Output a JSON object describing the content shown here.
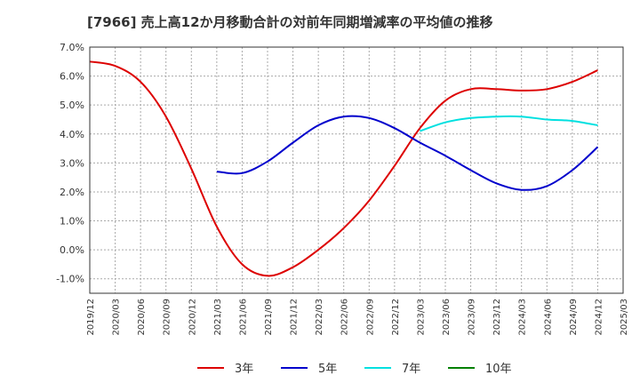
{
  "chart_data": {
    "type": "line",
    "title": "[7966]  売上高12か月移動合計の対前年同期増減率の平均値の推移",
    "xlabel": "",
    "ylabel": "",
    "ylim": [
      -1.5,
      7.0
    ],
    "y_ticks": [
      -1.0,
      0.0,
      1.0,
      2.0,
      3.0,
      4.0,
      5.0,
      6.0,
      7.0
    ],
    "y_tick_labels": [
      "-1.0%",
      "0.0%",
      "1.0%",
      "2.0%",
      "3.0%",
      "4.0%",
      "5.0%",
      "6.0%",
      "7.0%"
    ],
    "x_ticks": [
      "2019/12",
      "2020/03",
      "2020/06",
      "2020/09",
      "2020/12",
      "2021/03",
      "2021/06",
      "2021/09",
      "2021/12",
      "2022/03",
      "2022/06",
      "2022/09",
      "2022/12",
      "2023/03",
      "2023/06",
      "2023/09",
      "2023/12",
      "2024/03",
      "2024/06",
      "2024/09",
      "2024/12",
      "2025/03"
    ],
    "grid": true,
    "legend_position": "bottom",
    "series": [
      {
        "name": "3年",
        "color": "#dd0000",
        "x": [
          "2019/12",
          "2020/03",
          "2020/06",
          "2020/09",
          "2020/12",
          "2021/03",
          "2021/06",
          "2021/09",
          "2021/12",
          "2022/03",
          "2022/06",
          "2022/09",
          "2022/12",
          "2023/03",
          "2023/06",
          "2023/09",
          "2023/12",
          "2024/03",
          "2024/06",
          "2024/09",
          "2024/12"
        ],
        "values": [
          6.5,
          6.35,
          5.8,
          4.6,
          2.8,
          0.8,
          -0.5,
          -0.9,
          -0.6,
          0.0,
          0.75,
          1.7,
          2.9,
          4.2,
          5.15,
          5.55,
          5.55,
          5.5,
          5.55,
          5.8,
          6.2
        ]
      },
      {
        "name": "5年",
        "color": "#0000cc",
        "x": [
          "2021/03",
          "2021/06",
          "2021/09",
          "2021/12",
          "2022/03",
          "2022/06",
          "2022/09",
          "2022/12",
          "2023/03",
          "2023/06",
          "2023/09",
          "2023/12",
          "2024/03",
          "2024/06",
          "2024/09",
          "2024/12"
        ],
        "values": [
          2.7,
          2.65,
          3.05,
          3.7,
          4.3,
          4.6,
          4.55,
          4.2,
          3.7,
          3.25,
          2.75,
          2.3,
          2.07,
          2.2,
          2.75,
          3.55
        ]
      },
      {
        "name": "7年",
        "color": "#00e0e0",
        "x": [
          "2023/03",
          "2023/06",
          "2023/09",
          "2023/12",
          "2024/03",
          "2024/06",
          "2024/09",
          "2024/12"
        ],
        "values": [
          4.1,
          4.4,
          4.55,
          4.6,
          4.6,
          4.5,
          4.45,
          4.3
        ]
      },
      {
        "name": "10年",
        "color": "#008000",
        "x": [],
        "values": []
      }
    ]
  }
}
